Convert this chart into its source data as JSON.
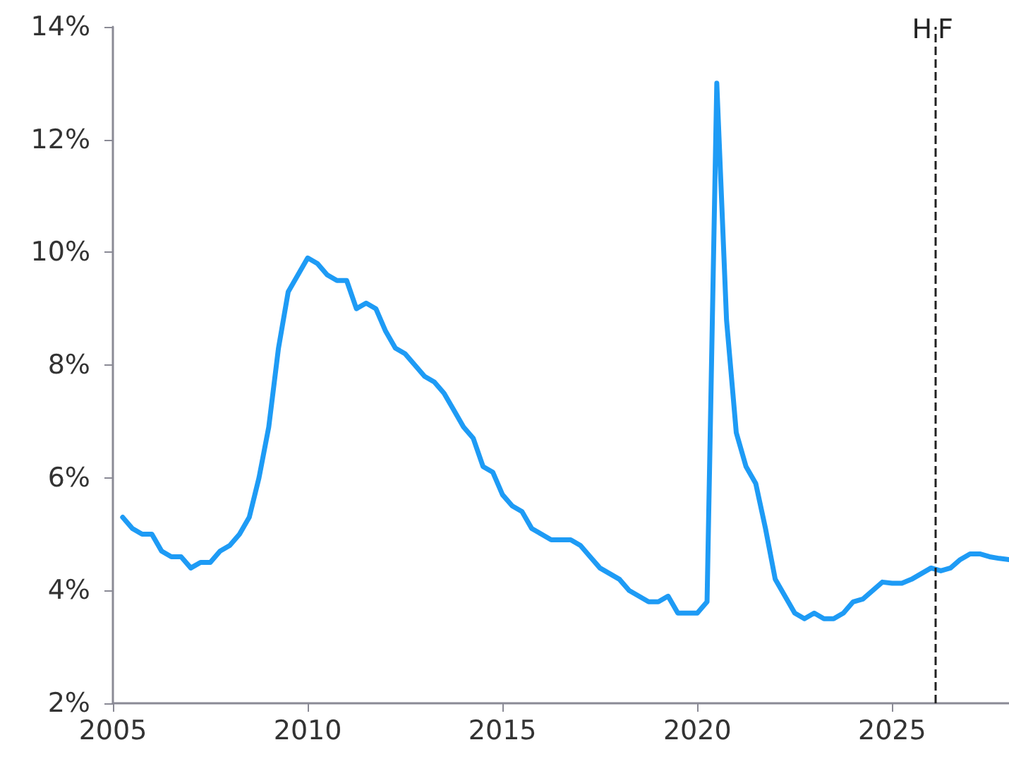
{
  "chart_data": {
    "type": "line",
    "line_style": "solid",
    "marker": "none",
    "grid": false,
    "x": [
      2005.25,
      2005.5,
      2005.75,
      2006,
      2006.25,
      2006.5,
      2006.75,
      2007,
      2007.25,
      2007.5,
      2007.75,
      2008,
      2008.25,
      2008.5,
      2008.75,
      2009,
      2009.25,
      2009.5,
      2009.75,
      2010,
      2010.25,
      2010.5,
      2010.75,
      2011,
      2011.25,
      2011.5,
      2011.75,
      2012,
      2012.25,
      2012.5,
      2012.75,
      2013,
      2013.25,
      2013.5,
      2013.75,
      2014,
      2014.25,
      2014.5,
      2014.75,
      2015,
      2015.25,
      2015.5,
      2015.75,
      2016,
      2016.25,
      2016.5,
      2016.75,
      2017,
      2017.25,
      2017.5,
      2017.75,
      2018,
      2018.25,
      2018.5,
      2018.75,
      2019,
      2019.25,
      2019.5,
      2019.75,
      2020,
      2020.25,
      2020.5,
      2020.75,
      2021,
      2021.25,
      2021.5,
      2021.75,
      2022,
      2022.25,
      2022.5,
      2022.75,
      2023,
      2023.25,
      2023.5,
      2023.75,
      2024,
      2024.25,
      2024.5,
      2024.75,
      2025,
      2025.25,
      2025.5,
      2025.75,
      2026,
      2026.25,
      2026.5,
      2026.75,
      2027,
      2027.25,
      2027.5,
      2027.75,
      2028
    ],
    "series": [
      {
        "color": "#1e9bf5",
        "values": [
          5.3,
          5.1,
          5.0,
          5.0,
          4.7,
          4.6,
          4.6,
          4.4,
          4.5,
          4.5,
          4.7,
          4.8,
          5.0,
          5.3,
          6.0,
          6.9,
          8.3,
          9.3,
          9.6,
          9.9,
          9.8,
          9.6,
          9.5,
          9.5,
          9.0,
          9.1,
          9.0,
          8.6,
          8.3,
          8.2,
          8.0,
          7.8,
          7.7,
          7.5,
          7.2,
          6.9,
          6.7,
          6.2,
          6.1,
          5.7,
          5.5,
          5.4,
          5.1,
          5.0,
          4.9,
          4.9,
          4.9,
          4.8,
          4.6,
          4.4,
          4.3,
          4.2,
          4.0,
          3.9,
          3.8,
          3.8,
          3.9,
          3.6,
          3.6,
          3.6,
          3.8,
          13.0,
          8.8,
          6.8,
          6.2,
          5.9,
          5.1,
          4.2,
          3.9,
          3.6,
          3.5,
          3.6,
          3.5,
          3.5,
          3.6,
          3.8,
          3.85,
          4.0,
          4.15,
          4.13,
          4.13,
          4.2,
          4.3,
          4.4,
          4.35,
          4.4,
          4.55,
          4.65,
          4.65,
          4.6,
          4.57,
          4.55
        ]
      }
    ],
    "xlim": [
      2005,
      2028
    ],
    "xticks": [
      2005,
      2010,
      2015,
      2020,
      2025
    ],
    "ylim": [
      2,
      14
    ],
    "yticks": [
      {
        "value": 2,
        "label": "2%"
      },
      {
        "value": 4,
        "label": "4%"
      },
      {
        "value": 6,
        "label": "6%"
      },
      {
        "value": 8,
        "label": "8%"
      },
      {
        "value": 10,
        "label": "10%"
      },
      {
        "value": 12,
        "label": "12%"
      },
      {
        "value": 14,
        "label": "14%"
      }
    ],
    "ref_lines": [
      {
        "axis": "x",
        "value": 2026.1,
        "color": "#222222",
        "line_style": "dashed"
      }
    ],
    "annotations": [
      {
        "text": "H",
        "x": 2026.1,
        "y": 14
      },
      {
        "text": "F",
        "x": 2026.1,
        "y": 14
      }
    ]
  }
}
